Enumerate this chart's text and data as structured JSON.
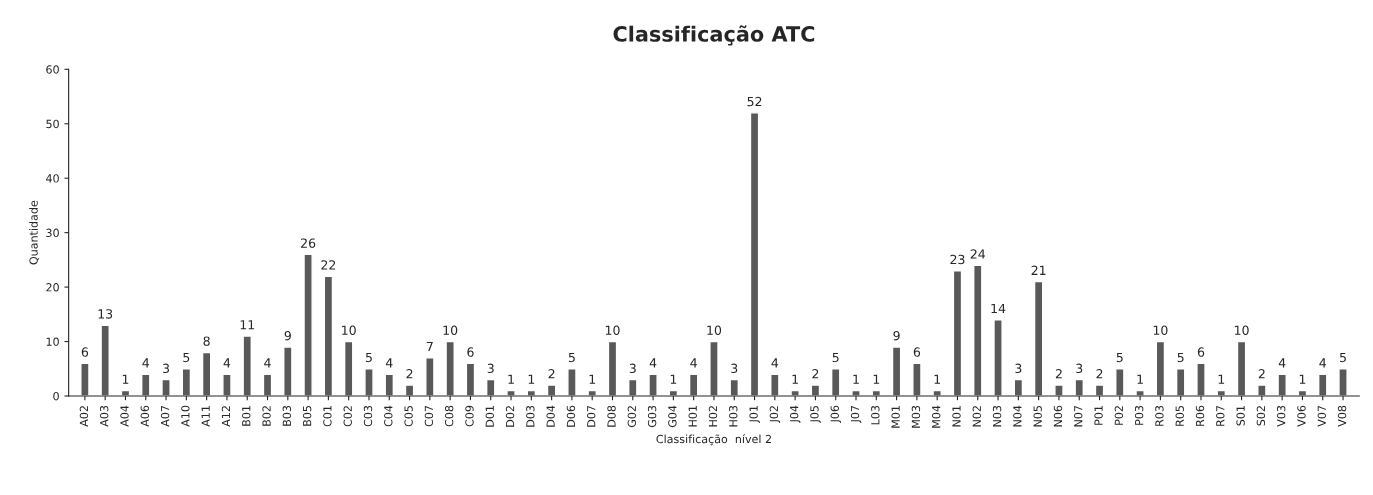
{
  "chart_data": {
    "type": "bar",
    "title": "Classificação ATC",
    "xlabel": "Classificação  nível 2",
    "ylabel": "Quantidade",
    "categories": [
      "A02",
      "A03",
      "A04",
      "A06",
      "A07",
      "A10",
      "A11",
      "A12",
      "B01",
      "B02",
      "B03",
      "B05",
      "C01",
      "C02",
      "C03",
      "C04",
      "C05",
      "C07",
      "C08",
      "C09",
      "D01",
      "D02",
      "D03",
      "D04",
      "D06",
      "D07",
      "D08",
      "G02",
      "G03",
      "G04",
      "H01",
      "H02",
      "H03",
      "J01",
      "J02",
      "J04",
      "J05",
      "J06",
      "J07",
      "L03",
      "M01",
      "M03",
      "M04",
      "N01",
      "N02",
      "N03",
      "N04",
      "N05",
      "N06",
      "N07",
      "P01",
      "P02",
      "P03",
      "R03",
      "R05",
      "R06",
      "R07",
      "S01",
      "S02",
      "V03",
      "V06",
      "V07",
      "V08"
    ],
    "values": [
      6,
      13,
      1,
      4,
      3,
      5,
      8,
      4,
      11,
      4,
      9,
      26,
      22,
      10,
      5,
      4,
      2,
      7,
      10,
      6,
      3,
      1,
      1,
      2,
      5,
      1,
      10,
      3,
      4,
      1,
      4,
      10,
      3,
      52,
      4,
      1,
      2,
      5,
      1,
      1,
      9,
      6,
      1,
      23,
      24,
      14,
      3,
      21,
      2,
      3,
      2,
      5,
      1,
      10,
      5,
      6,
      1,
      10,
      2,
      4,
      1,
      4,
      5
    ],
    "color": "#595959",
    "ylim": [
      0,
      60
    ],
    "yticks": [
      0,
      10,
      20,
      30,
      40,
      50,
      60
    ],
    "grid": false,
    "legend": false,
    "data_labels": true
  }
}
